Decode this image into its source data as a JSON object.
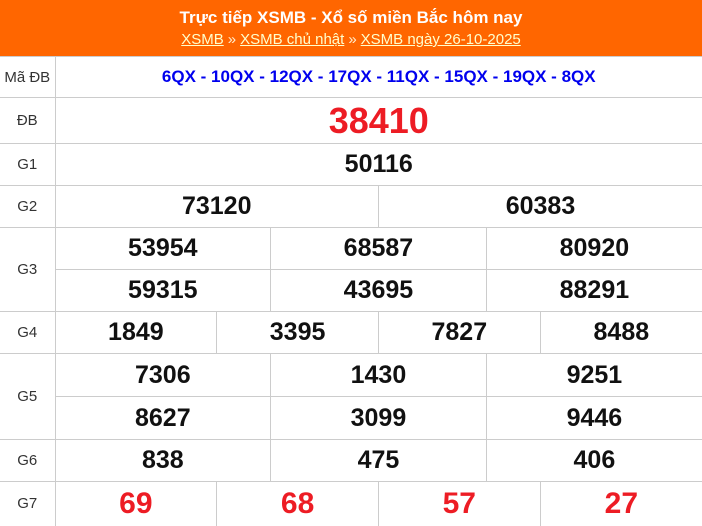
{
  "header": {
    "title": "Trực tiếp XSMB - Xổ số miền Bắc hôm nay",
    "breadcrumb": {
      "items": [
        "XSMB",
        "XSMB chủ nhật",
        "XSMB ngày 26-10-2025"
      ],
      "separator": "»"
    }
  },
  "colors": {
    "header_bg": "#ff6600",
    "title_text": "#ffffff",
    "breadcrumb_link": "#ffffcc",
    "special_red": "#ed1c24",
    "code_blue": "#0000ee",
    "number_black": "#111111",
    "label_gray": "#333333",
    "border_gray": "#cccccc"
  },
  "table": {
    "rows": [
      {
        "label": "Mã ĐB",
        "cells": [
          "6QX - 10QX - 12QX - 17QX - 11QX - 15QX - 19QX - 8QX"
        ]
      },
      {
        "label": "ĐB",
        "cells": [
          "38410"
        ]
      },
      {
        "label": "G1",
        "cells": [
          "50116"
        ]
      },
      {
        "label": "G2",
        "cells": [
          "73120",
          "60383"
        ]
      },
      {
        "label": "G3",
        "lines": [
          [
            "53954",
            "68587",
            "80920"
          ],
          [
            "59315",
            "43695",
            "88291"
          ]
        ]
      },
      {
        "label": "G4",
        "cells": [
          "1849",
          "3395",
          "7827",
          "8488"
        ]
      },
      {
        "label": "G5",
        "lines": [
          [
            "7306",
            "1430",
            "9251"
          ],
          [
            "8627",
            "3099",
            "9446"
          ]
        ]
      },
      {
        "label": "G6",
        "cells": [
          "838",
          "475",
          "406"
        ]
      },
      {
        "label": "G7",
        "cells": [
          "69",
          "68",
          "57",
          "27"
        ]
      }
    ]
  }
}
